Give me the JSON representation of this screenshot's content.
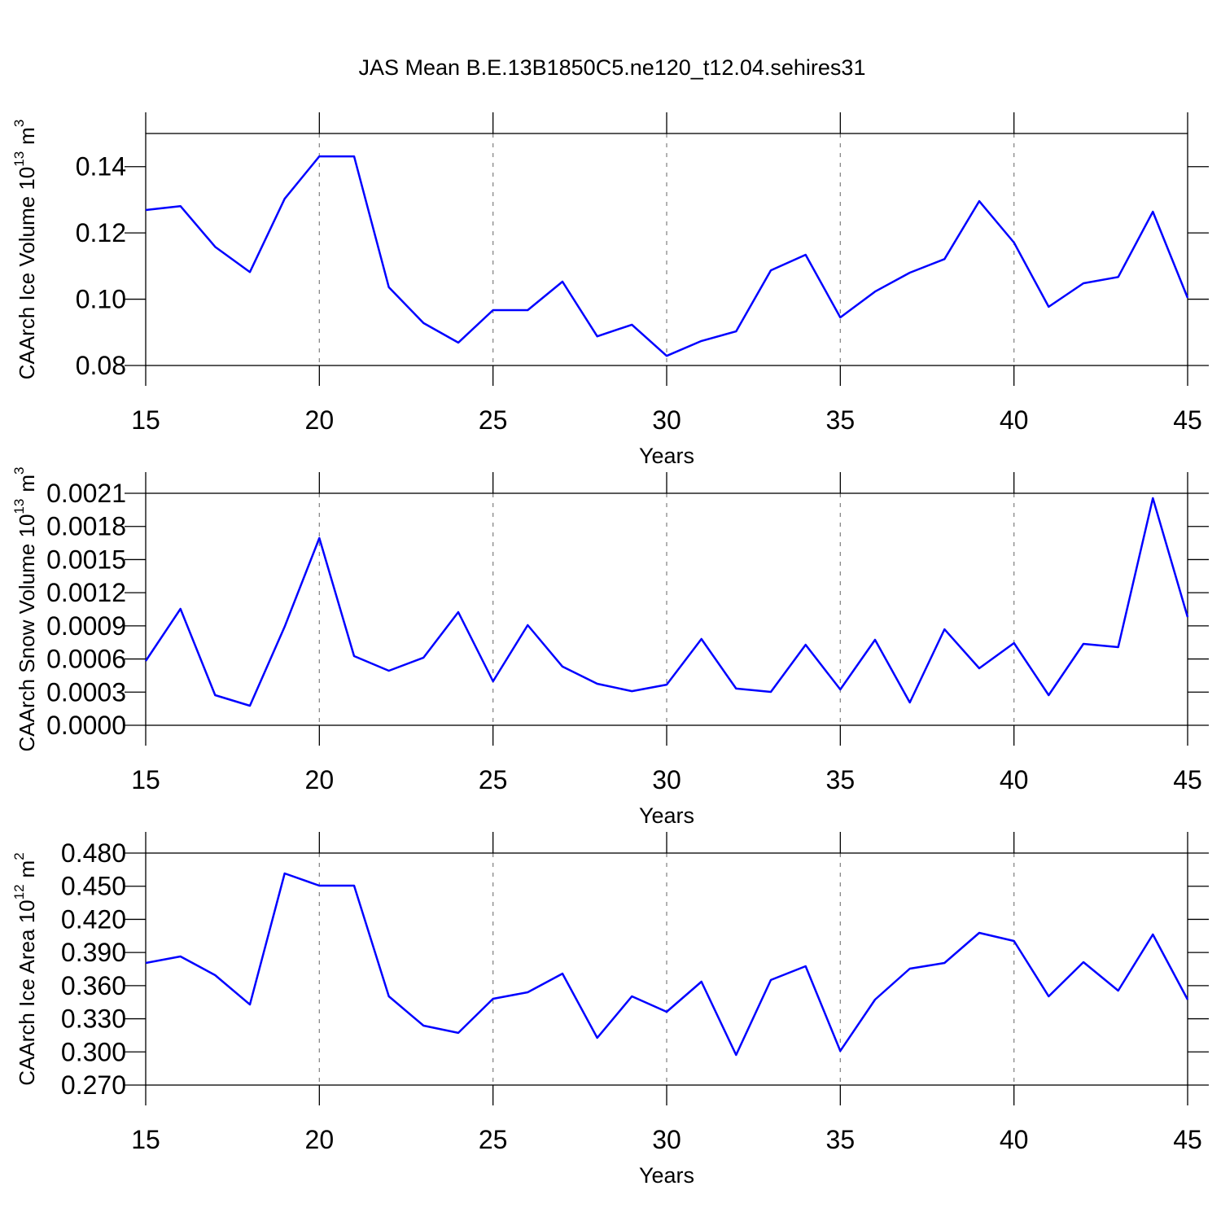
{
  "title": "JAS Mean B.E.13B1850C5.ne120_t12.04.sehires31",
  "chart_data": [
    {
      "type": "line",
      "xlabel": "Years",
      "ylabel": [
        "CAArch Ice Volume 10",
        "13",
        "m",
        "3"
      ],
      "xlim": [
        15,
        45
      ],
      "xticks": [
        15,
        20,
        25,
        30,
        35,
        40,
        45
      ],
      "ylim": [
        0.08,
        0.15
      ],
      "yticks": [
        {
          "value": 0.08,
          "label": "0.08"
        },
        {
          "value": 0.1,
          "label": "0.10"
        },
        {
          "value": 0.12,
          "label": "0.12"
        },
        {
          "value": 0.14,
          "label": "0.14"
        }
      ],
      "grid": "x",
      "x": [
        15,
        16,
        17,
        18,
        19,
        20,
        21,
        22,
        23,
        24,
        25,
        26,
        27,
        28,
        29,
        30,
        31,
        32,
        33,
        34,
        35,
        36,
        37,
        38,
        39,
        40,
        41,
        42,
        43,
        44,
        45
      ],
      "series": [
        {
          "color": "#0000ff",
          "values": [
            0.1269,
            0.1281,
            0.1158,
            0.1082,
            0.1303,
            0.1431,
            0.1431,
            0.1036,
            0.0928,
            0.0869,
            0.0967,
            0.0967,
            0.1053,
            0.0888,
            0.0923,
            0.0829,
            0.0874,
            0.0903,
            0.1087,
            0.1134,
            0.0945,
            0.1023,
            0.108,
            0.1121,
            0.1296,
            0.1171,
            0.0977,
            0.1048,
            0.1067,
            0.1264,
            0.1004
          ]
        }
      ]
    },
    {
      "type": "line",
      "xlabel": "Years",
      "ylabel": [
        "CAArch Snow Volume 10",
        "13",
        "m",
        "3"
      ],
      "xlim": [
        15,
        45
      ],
      "xticks": [
        15,
        20,
        25,
        30,
        35,
        40,
        45
      ],
      "ylim": [
        0,
        0.0021
      ],
      "yticks": [
        {
          "value": 0,
          "label": "0.0000"
        },
        {
          "value": 0.0003,
          "label": "0.0003"
        },
        {
          "value": 0.0006,
          "label": "0.0006"
        },
        {
          "value": 0.0009,
          "label": "0.0009"
        },
        {
          "value": 0.0012,
          "label": "0.0012"
        },
        {
          "value": 0.0015,
          "label": "0.0015"
        },
        {
          "value": 0.0018,
          "label": "0.0018"
        },
        {
          "value": 0.0021,
          "label": "0.0021"
        }
      ],
      "grid": "x",
      "x": [
        15,
        16,
        17,
        18,
        19,
        20,
        21,
        22,
        23,
        24,
        25,
        26,
        27,
        28,
        29,
        30,
        31,
        32,
        33,
        34,
        35,
        36,
        37,
        38,
        39,
        40,
        41,
        42,
        43,
        44,
        45
      ],
      "series": [
        {
          "color": "#0000ff",
          "values": [
            0.000582,
            0.001054,
            0.000273,
            0.000177,
            0.000892,
            0.001695,
            0.000626,
            0.000494,
            0.000612,
            0.001024,
            0.000398,
            0.000906,
            0.000531,
            0.000376,
            0.000309,
            0.000368,
            0.000781,
            0.000332,
            0.000302,
            0.000729,
            0.000324,
            0.000774,
            0.000206,
            0.000869,
            0.000516,
            0.000744,
            0.000273,
            0.000737,
            0.000707,
            0.002056,
            0.00098
          ]
        }
      ]
    },
    {
      "type": "line",
      "xlabel": "Years",
      "ylabel": [
        "CAArch Ice Area 10",
        "12",
        "m",
        "2"
      ],
      "xlim": [
        15,
        45
      ],
      "xticks": [
        15,
        20,
        25,
        30,
        35,
        40,
        45
      ],
      "ylim": [
        0.27,
        0.48
      ],
      "yticks": [
        {
          "value": 0.27,
          "label": "0.270"
        },
        {
          "value": 0.3,
          "label": "0.300"
        },
        {
          "value": 0.33,
          "label": "0.330"
        },
        {
          "value": 0.36,
          "label": "0.360"
        },
        {
          "value": 0.39,
          "label": "0.390"
        },
        {
          "value": 0.42,
          "label": "0.420"
        },
        {
          "value": 0.45,
          "label": "0.450"
        },
        {
          "value": 0.48,
          "label": "0.480"
        }
      ],
      "grid": "x",
      "x": [
        15,
        16,
        17,
        18,
        19,
        20,
        21,
        22,
        23,
        24,
        25,
        26,
        27,
        28,
        29,
        30,
        31,
        32,
        33,
        34,
        35,
        36,
        37,
        38,
        39,
        40,
        41,
        42,
        43,
        44,
        45
      ],
      "series": [
        {
          "color": "#0000ff",
          "values": [
            0.3805,
            0.3864,
            0.3695,
            0.3429,
            0.4616,
            0.4505,
            0.4505,
            0.3503,
            0.3238,
            0.3172,
            0.3481,
            0.354,
            0.3709,
            0.3127,
            0.3503,
            0.3363,
            0.3636,
            0.2973,
            0.3651,
            0.3776,
            0.3009,
            0.3474,
            0.3754,
            0.3805,
            0.4078,
            0.4004,
            0.3503,
            0.3813,
            0.3555,
            0.4063,
            0.3474
          ]
        }
      ]
    }
  ]
}
